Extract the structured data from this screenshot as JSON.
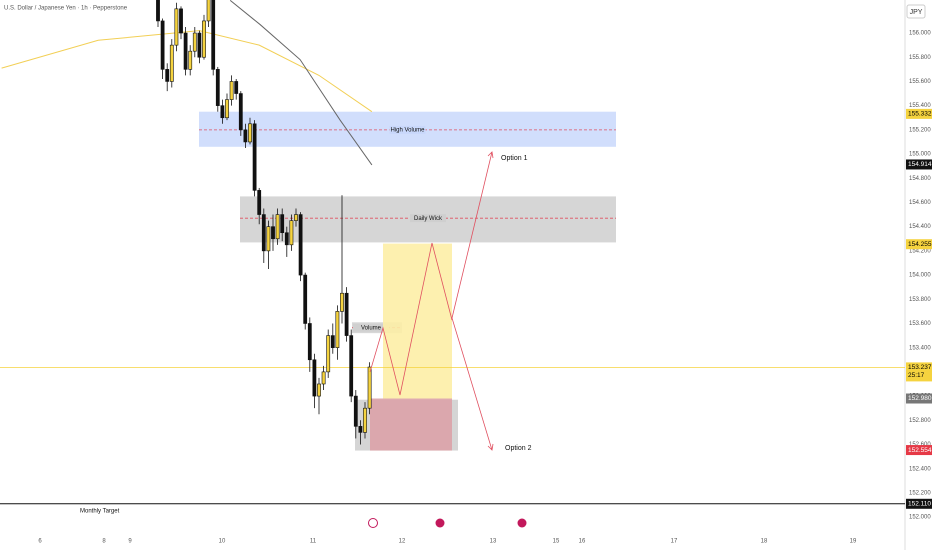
{
  "chart_data": {
    "type": "candlestick",
    "title": "U.S. Dollar / Japanese Yen · 1h · Pepperstone",
    "currency": "JPY",
    "ylim": [
      152.1,
      156.273
    ],
    "yticks": [
      {
        "value": 156,
        "label": "156.000"
      },
      {
        "value": 155.8,
        "label": "155.800"
      },
      {
        "value": 155.6,
        "label": "155.600"
      },
      {
        "value": 155.4,
        "label": "155.400"
      },
      {
        "value": 155.2,
        "label": "155.200"
      },
      {
        "value": 155,
        "label": "155.000"
      },
      {
        "value": 154.8,
        "label": "154.800"
      },
      {
        "value": 154.6,
        "label": "154.600"
      },
      {
        "value": 154.4,
        "label": "154.400"
      },
      {
        "value": 154.2,
        "label": "154.200"
      },
      {
        "value": 154,
        "label": "154.000"
      },
      {
        "value": 153.8,
        "label": "153.800"
      },
      {
        "value": 153.6,
        "label": "153.600"
      },
      {
        "value": 153.4,
        "label": "153.400"
      },
      {
        "value": 153.2,
        "label": "153.200"
      },
      {
        "value": 153,
        "label": "153.000"
      },
      {
        "value": 152.8,
        "label": "152.800"
      },
      {
        "value": 152.6,
        "label": "152.600"
      },
      {
        "value": 152.4,
        "label": "152.400"
      },
      {
        "value": 152.2,
        "label": "152.200"
      },
      {
        "value": 152,
        "label": "152.000"
      }
    ],
    "categories": [
      "6",
      "8",
      "9",
      "10",
      "11",
      "12",
      "13",
      "15",
      "16",
      "17",
      "18",
      "19"
    ],
    "up_color": "#f5d33f",
    "down_color": "#111111",
    "open": [
      156.3,
      156.1,
      155.7,
      155.6,
      155.9,
      156.2,
      156.0,
      155.7,
      155.85,
      156.0,
      155.8,
      156.1,
      156.3,
      155.7,
      155.4,
      155.3,
      155.45,
      155.6,
      155.5,
      155.2,
      155.1,
      155.25,
      154.7,
      154.5,
      154.2,
      154.4,
      154.3,
      154.5,
      154.35,
      154.25,
      154.45,
      154.5,
      154.0,
      153.6,
      153.3,
      153.0,
      153.1,
      153.2,
      153.5,
      153.4,
      153.7,
      153.85,
      153.5,
      153.0,
      152.75,
      152.7,
      152.9
    ],
    "high": [
      156.35,
      156.12,
      155.75,
      155.95,
      156.25,
      156.22,
      156.05,
      155.9,
      156.05,
      156.02,
      156.15,
      156.35,
      156.32,
      155.72,
      155.45,
      155.5,
      155.65,
      155.62,
      155.52,
      155.25,
      155.3,
      155.28,
      154.72,
      154.55,
      154.45,
      154.5,
      154.55,
      154.55,
      154.4,
      154.5,
      154.55,
      154.52,
      154.02,
      153.65,
      153.35,
      153.15,
      153.25,
      153.55,
      153.6,
      153.75,
      154.66,
      153.9,
      153.55,
      153.05,
      152.8,
      152.95,
      153.28
    ],
    "low": [
      156.05,
      155.62,
      155.52,
      155.55,
      155.85,
      155.95,
      155.65,
      155.65,
      155.8,
      155.75,
      155.78,
      156.05,
      155.65,
      155.35,
      155.25,
      155.28,
      155.4,
      155.45,
      155.15,
      155.05,
      155.08,
      154.65,
      154.42,
      154.1,
      154.05,
      154.2,
      154.25,
      154.28,
      154.15,
      154.2,
      154.4,
      153.95,
      153.55,
      153.2,
      152.9,
      152.85,
      153.05,
      153.15,
      153.35,
      153.3,
      153.6,
      153.45,
      152.95,
      152.65,
      152.6,
      152.65,
      152.85
    ],
    "close": [
      156.1,
      155.7,
      155.6,
      155.9,
      156.2,
      156.0,
      155.7,
      155.85,
      156.0,
      155.8,
      156.1,
      156.3,
      155.7,
      155.4,
      155.3,
      155.45,
      155.6,
      155.5,
      155.2,
      155.1,
      155.25,
      154.7,
      154.5,
      154.2,
      154.4,
      154.3,
      154.5,
      154.35,
      154.25,
      154.45,
      154.5,
      154.0,
      153.6,
      153.3,
      153.0,
      153.1,
      153.2,
      153.5,
      153.4,
      153.7,
      153.85,
      153.5,
      153.0,
      152.75,
      152.7,
      152.9,
      153.24
    ],
    "series": [
      {
        "color": "#f2cf55",
        "x": [
          -34,
          -13,
          9,
          22,
          35,
          46.5
        ],
        "values": [
          155.71,
          155.94,
          156.02,
          155.9,
          155.65,
          155.35
        ]
      },
      {
        "color": "#666666",
        "x": [
          15.7,
          22.2,
          30.9,
          39.6,
          46.5
        ],
        "values": [
          156.27,
          156.07,
          155.78,
          155.28,
          154.91
        ]
      }
    ],
    "zones": [
      {
        "label": "High Volume",
        "top": 155.35,
        "bottom": 155.06,
        "line": 155.2,
        "color": "#c9d8fb"
      },
      {
        "label": "Daily Wick",
        "top": 154.65,
        "bottom": 154.27,
        "line": 154.47,
        "color": "#cfcfcf"
      },
      {
        "label": "Volume",
        "top": 153.61,
        "bottom": 153.52,
        "line": 153.565,
        "color": "#d0d0d0"
      }
    ],
    "boxes": [
      {
        "top": 152.97,
        "bottom": 152.55,
        "color": "#d0d0d0"
      },
      {
        "top": 154.26,
        "bottom": 152.98,
        "color": "#fdeea6"
      },
      {
        "top": 152.98,
        "bottom": 152.55,
        "color": "#dba2a8"
      }
    ],
    "annotations": [
      {
        "text": "Option 1"
      },
      {
        "text": "Option 2"
      },
      {
        "text": "Monthly Target"
      }
    ],
    "price_tags": [
      {
        "value": 155.332,
        "label": "155.332",
        "color": "#f5d33f",
        "text_color": "#000"
      },
      {
        "value": 154.914,
        "label": "154.914",
        "color": "#111",
        "text_color": "#fff"
      },
      {
        "value": 154.255,
        "label": "154.255",
        "color": "#f5d33f",
        "text_color": "#000"
      },
      {
        "value": 153.237,
        "label": "153.237",
        "color": "#f5d33f",
        "text_color": "#000"
      },
      {
        "value": 152.98,
        "label": "152.980",
        "color": "#777",
        "text_color": "#fff"
      },
      {
        "value": 152.554,
        "label": "152.554",
        "color": "#e63946",
        "text_color": "#fff"
      },
      {
        "value": 152.11,
        "label": "152.110",
        "color": "#111",
        "text_color": "#fff"
      }
    ],
    "countdown": "25:17"
  }
}
